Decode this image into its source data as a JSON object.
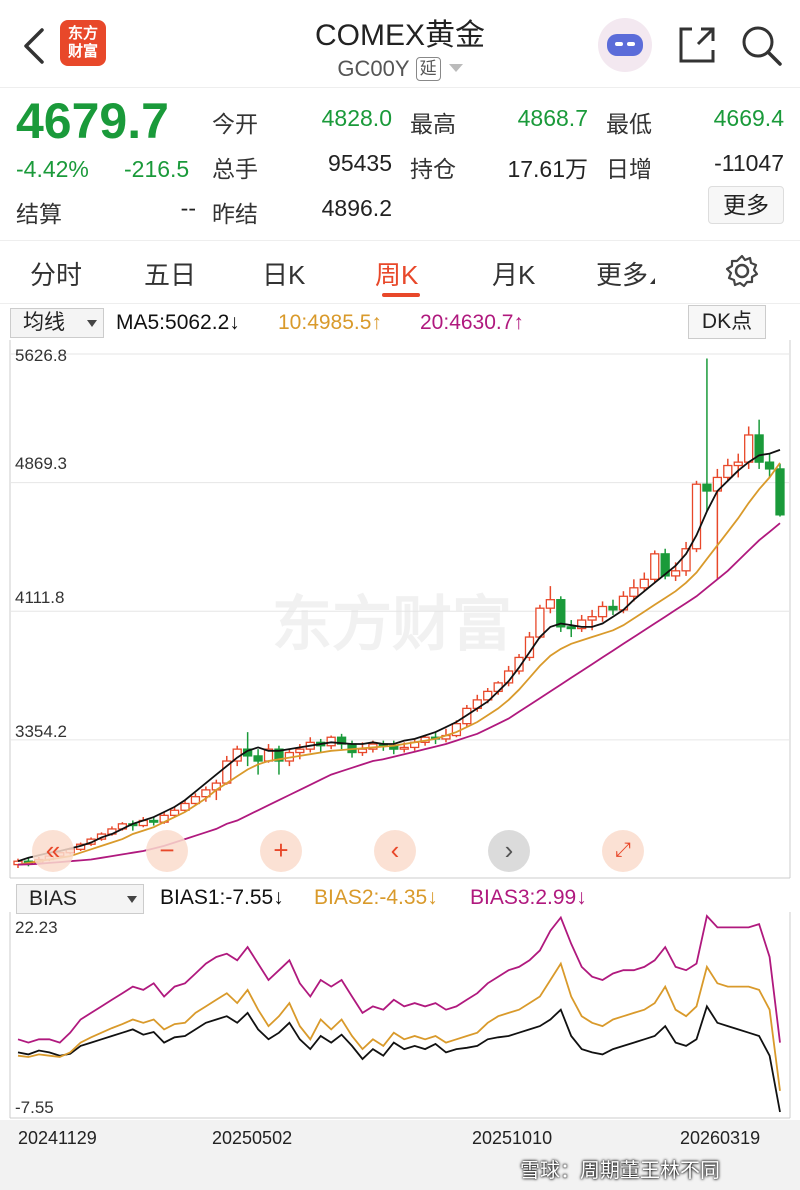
{
  "header": {
    "title": "COMEX黄金",
    "symbol": "GC00Y",
    "delay_tag": "延",
    "logo_line1": "东方",
    "logo_line2": "财富",
    "icons": [
      "back-arrow-icon",
      "robot-avatar-icon",
      "share-icon",
      "search-icon"
    ]
  },
  "quote": {
    "price": "4679.7",
    "change_pct": "-4.42%",
    "change": "-216.5",
    "open_label": "今开",
    "open": "4828.0",
    "high_label": "最高",
    "high": "4868.7",
    "low_label": "最低",
    "low": "4669.4",
    "volume_label": "总手",
    "volume": "95435",
    "oi_label": "持仓",
    "oi": "17.61万",
    "daily_inc_label": "日增",
    "daily_inc": "-11047",
    "settle_label": "结算",
    "settle": "--",
    "prev_settle_label": "昨结",
    "prev_settle": "4896.2",
    "more_label": "更多"
  },
  "tabs": [
    {
      "label": "分时"
    },
    {
      "label": "五日"
    },
    {
      "label": "日K"
    },
    {
      "label": "周K"
    },
    {
      "label": "月K"
    },
    {
      "label": "更多"
    }
  ],
  "active_tab": "周K",
  "colors": {
    "up": "#e8482a",
    "down": "#1a9a3a",
    "ma5": "#111111",
    "ma10": "#d99a2b",
    "ma20": "#b0197e"
  },
  "ma_bar": {
    "selector": "均线",
    "ma5": "MA5:5062.2↓",
    "ma10": "10:4985.5↑",
    "ma20": "20:4630.7↑",
    "dk_label": "DK点"
  },
  "bias_bar": {
    "selector": "BIAS",
    "bias1": "BIAS1:-7.55↓",
    "bias2": "BIAS2:-4.35↓",
    "bias3": "BIAS3:2.99↓"
  },
  "watermark": "东方财富",
  "credit": "雪球：周期董王林不同",
  "chart_data": [
    {
      "type": "candlestick",
      "title": "",
      "y_ticks": [
        "5626.8",
        "4869.3",
        "4111.8",
        "3354.2"
      ],
      "ylim": [
        2600,
        5626.8
      ],
      "x_ticks": [
        "20241129",
        "20250502",
        "20251010",
        "20260319"
      ],
      "series": [
        {
          "name": "MA5",
          "values": [
            2640,
            2660,
            2675,
            2690,
            2700,
            2715,
            2730,
            2750,
            2780,
            2800,
            2830,
            2860,
            2880,
            2900,
            2930,
            2960,
            3000,
            3050,
            3100,
            3150,
            3200,
            3250,
            3290,
            3310,
            3290,
            3290,
            3300,
            3310,
            3320,
            3330,
            3340,
            3335,
            3330,
            3330,
            3340,
            3330,
            3330,
            3350,
            3360,
            3380,
            3400,
            3430,
            3460,
            3500,
            3540,
            3580,
            3640,
            3700,
            3780,
            3870,
            3960,
            4020,
            4040,
            4030,
            4020,
            4020,
            4040,
            4080,
            4120,
            4180,
            4230,
            4280,
            4330,
            4380,
            4450,
            4560,
            4700,
            4820,
            4880,
            4940,
            4990,
            5030,
            5040,
            5062.2
          ]
        },
        {
          "name": "10",
          "values": [
            2620,
            2630,
            2640,
            2650,
            2660,
            2670,
            2690,
            2710,
            2730,
            2750,
            2770,
            2800,
            2820,
            2840,
            2870,
            2900,
            2930,
            2970,
            3010,
            3060,
            3100,
            3140,
            3180,
            3210,
            3230,
            3240,
            3250,
            3260,
            3270,
            3280,
            3290,
            3295,
            3300,
            3305,
            3310,
            3315,
            3320,
            3330,
            3340,
            3350,
            3360,
            3380,
            3400,
            3430,
            3460,
            3500,
            3540,
            3590,
            3650,
            3720,
            3790,
            3850,
            3890,
            3920,
            3940,
            3960,
            3980,
            4000,
            4030,
            4070,
            4110,
            4150,
            4190,
            4230,
            4280,
            4340,
            4420,
            4500,
            4580,
            4660,
            4750,
            4830,
            4900,
            4985.5
          ]
        },
        {
          "name": "20",
          "values": [
            2620,
            2622,
            2625,
            2630,
            2635,
            2640,
            2645,
            2650,
            2660,
            2670,
            2680,
            2690,
            2700,
            2715,
            2730,
            2750,
            2770,
            2790,
            2810,
            2830,
            2860,
            2880,
            2910,
            2940,
            2970,
            3000,
            3030,
            3060,
            3090,
            3120,
            3150,
            3170,
            3190,
            3210,
            3230,
            3240,
            3255,
            3270,
            3285,
            3300,
            3315,
            3330,
            3350,
            3370,
            3390,
            3420,
            3450,
            3480,
            3520,
            3560,
            3600,
            3640,
            3680,
            3720,
            3760,
            3800,
            3840,
            3880,
            3920,
            3960,
            4000,
            4040,
            4080,
            4120,
            4160,
            4200,
            4250,
            4300,
            4350,
            4410,
            4470,
            4530,
            4580,
            4630.7
          ]
        }
      ],
      "candles": [
        [
          2620,
          2640,
          2600,
          2655
        ],
        [
          2640,
          2630,
          2610,
          2660
        ],
        [
          2630,
          2650,
          2620,
          2665
        ],
        [
          2650,
          2670,
          2640,
          2680
        ],
        [
          2670,
          2690,
          2660,
          2700
        ],
        [
          2690,
          2710,
          2680,
          2720
        ],
        [
          2710,
          2740,
          2700,
          2750
        ],
        [
          2740,
          2770,
          2730,
          2780
        ],
        [
          2770,
          2800,
          2760,
          2810
        ],
        [
          2800,
          2830,
          2790,
          2845
        ],
        [
          2830,
          2860,
          2820,
          2870
        ],
        [
          2860,
          2850,
          2820,
          2880
        ],
        [
          2850,
          2880,
          2840,
          2900
        ],
        [
          2880,
          2870,
          2850,
          2900
        ],
        [
          2870,
          2910,
          2860,
          2930
        ],
        [
          2910,
          2940,
          2900,
          2960
        ],
        [
          2940,
          2980,
          2930,
          3000
        ],
        [
          2980,
          3020,
          2970,
          3040
        ],
        [
          3020,
          3060,
          2990,
          3080
        ],
        [
          3060,
          3100,
          3000,
          3120
        ],
        [
          3100,
          3230,
          3090,
          3260
        ],
        [
          3230,
          3300,
          3200,
          3320
        ],
        [
          3300,
          3260,
          3200,
          3400
        ],
        [
          3260,
          3230,
          3150,
          3300
        ],
        [
          3230,
          3300,
          3220,
          3330
        ],
        [
          3300,
          3230,
          3150,
          3320
        ],
        [
          3230,
          3280,
          3200,
          3300
        ],
        [
          3280,
          3300,
          3240,
          3330
        ],
        [
          3300,
          3340,
          3280,
          3370
        ],
        [
          3340,
          3320,
          3280,
          3360
        ],
        [
          3320,
          3370,
          3300,
          3380
        ],
        [
          3370,
          3330,
          3300,
          3390
        ],
        [
          3330,
          3280,
          3250,
          3350
        ],
        [
          3280,
          3300,
          3260,
          3340
        ],
        [
          3300,
          3330,
          3280,
          3350
        ],
        [
          3330,
          3320,
          3290,
          3350
        ],
        [
          3320,
          3300,
          3270,
          3350
        ],
        [
          3300,
          3310,
          3280,
          3340
        ],
        [
          3310,
          3340,
          3290,
          3360
        ],
        [
          3340,
          3370,
          3320,
          3380
        ],
        [
          3370,
          3360,
          3330,
          3400
        ],
        [
          3360,
          3380,
          3340,
          3420
        ],
        [
          3380,
          3450,
          3370,
          3470
        ],
        [
          3450,
          3540,
          3430,
          3560
        ],
        [
          3540,
          3590,
          3520,
          3620
        ],
        [
          3590,
          3640,
          3570,
          3660
        ],
        [
          3640,
          3690,
          3620,
          3700
        ],
        [
          3690,
          3760,
          3670,
          3790
        ],
        [
          3760,
          3840,
          3740,
          3860
        ],
        [
          3840,
          3960,
          3820,
          3990
        ],
        [
          3960,
          4130,
          3950,
          4150
        ],
        [
          4130,
          4180,
          4100,
          4260
        ],
        [
          4180,
          4020,
          3990,
          4200
        ],
        [
          4020,
          4010,
          3960,
          4060
        ],
        [
          4010,
          4060,
          3990,
          4090
        ],
        [
          4060,
          4080,
          4000,
          4120
        ],
        [
          4080,
          4140,
          4050,
          4170
        ],
        [
          4140,
          4120,
          4090,
          4180
        ],
        [
          4120,
          4200,
          4100,
          4230
        ],
        [
          4200,
          4250,
          4170,
          4300
        ],
        [
          4250,
          4300,
          4230,
          4340
        ],
        [
          4300,
          4450,
          4280,
          4470
        ],
        [
          4450,
          4320,
          4300,
          4480
        ],
        [
          4320,
          4350,
          4290,
          4400
        ],
        [
          4350,
          4480,
          4320,
          4520
        ],
        [
          4480,
          4860,
          4460,
          4880
        ],
        [
          4860,
          4820,
          4700,
          5600
        ],
        [
          4820,
          4900,
          4300,
          4950
        ],
        [
          4900,
          4970,
          4880,
          5010
        ],
        [
          4970,
          4990,
          4900,
          5040
        ],
        [
          4990,
          5150,
          4950,
          5200
        ],
        [
          5150,
          4990,
          4950,
          5240
        ],
        [
          4990,
          4950,
          4900,
          5040
        ],
        [
          4950,
          4679.7,
          4669.4,
          4980
        ]
      ]
    },
    {
      "type": "line",
      "title": "",
      "y_ticks": [
        "22.23",
        "-7.55"
      ],
      "ylim": [
        -7.55,
        22.23
      ],
      "series": [
        {
          "name": "BIAS1",
          "values": [
            1.5,
            1.2,
            1.8,
            1.5,
            1.0,
            1.3,
            2.5,
            3.0,
            3.5,
            4.0,
            4.5,
            5.0,
            4.2,
            4.6,
            3.0,
            3.8,
            4.0,
            5.0,
            6.0,
            6.5,
            7.0,
            6.0,
            7.5,
            5.0,
            3.5,
            4.5,
            6.0,
            3.5,
            2.0,
            4.0,
            3.0,
            4.2,
            2.5,
            0.5,
            2.0,
            1.0,
            3.0,
            2.0,
            2.5,
            2.0,
            2.8,
            1.5,
            2.0,
            2.2,
            2.5,
            3.5,
            3.8,
            4.0,
            4.5,
            5.0,
            5.5,
            6.5,
            8.0,
            4.0,
            2.0,
            1.5,
            1.2,
            2.0,
            2.5,
            3.0,
            3.5,
            4.0,
            5.5,
            3.0,
            2.5,
            3.5,
            8.5,
            6.0,
            5.5,
            5.0,
            4.5,
            4.0,
            1.0,
            -7.55
          ]
        },
        {
          "name": "BIAS2",
          "values": [
            1.0,
            0.8,
            1.2,
            1.0,
            0.8,
            1.5,
            3.0,
            3.8,
            4.5,
            5.2,
            5.8,
            6.5,
            6.0,
            6.5,
            5.0,
            5.8,
            6.0,
            7.5,
            8.5,
            9.5,
            10.5,
            9.0,
            11.0,
            8.0,
            5.5,
            7.0,
            9.0,
            5.5,
            3.5,
            6.5,
            5.0,
            6.5,
            4.0,
            2.0,
            3.5,
            2.5,
            4.5,
            3.5,
            4.0,
            3.5,
            4.0,
            3.0,
            3.5,
            4.0,
            4.5,
            6.0,
            7.0,
            7.5,
            8.0,
            9.0,
            10.0,
            12.5,
            15.0,
            10.0,
            7.0,
            6.0,
            5.5,
            6.5,
            7.0,
            7.5,
            8.0,
            9.0,
            11.5,
            8.0,
            7.0,
            8.5,
            14.5,
            12.0,
            11.5,
            11.5,
            11.5,
            11.0,
            8.0,
            -4.35
          ]
        },
        {
          "name": "BIAS3",
          "values": [
            3.5,
            3.0,
            3.5,
            3.5,
            3.0,
            4.5,
            6.5,
            7.5,
            8.5,
            9.5,
            10.5,
            11.5,
            11.0,
            12.0,
            10.0,
            11.5,
            12.0,
            13.5,
            15.0,
            16.0,
            16.5,
            15.5,
            17.5,
            15.0,
            12.5,
            14.0,
            15.5,
            12.0,
            10.0,
            12.5,
            11.5,
            12.5,
            10.0,
            7.5,
            8.5,
            8.0,
            9.5,
            8.5,
            9.0,
            8.5,
            9.0,
            8.0,
            8.5,
            9.5,
            10.5,
            12.0,
            13.0,
            14.0,
            14.5,
            15.5,
            17.0,
            20.0,
            22.0,
            18.0,
            14.5,
            13.0,
            12.5,
            13.5,
            14.0,
            14.0,
            14.5,
            15.5,
            17.5,
            14.5,
            14.0,
            15.0,
            22.23,
            20.5,
            20.5,
            20.5,
            20.5,
            21.0,
            16.0,
            2.99
          ]
        }
      ]
    }
  ]
}
